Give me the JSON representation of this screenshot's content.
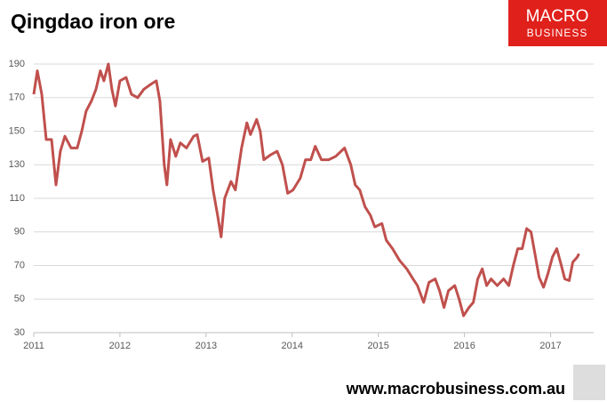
{
  "chart_data": {
    "type": "line",
    "title": "Qingdao iron ore",
    "brand": [
      "MACRO",
      "BUSINESS"
    ],
    "footer": "www.macrobusiness.com.au",
    "xlim": [
      2011,
      2017.5
    ],
    "xticks": [
      2011,
      2012,
      2013,
      2014,
      2015,
      2016,
      2017
    ],
    "ylim": [
      30,
      190
    ],
    "yticks": [
      30,
      50,
      70,
      90,
      110,
      130,
      150,
      170,
      190
    ],
    "grid": true,
    "series": [
      {
        "color": "#c0504d",
        "x": [
          2011.0,
          2011.041,
          2011.093,
          2011.144,
          2011.206,
          2011.258,
          2011.309,
          2011.361,
          2011.433,
          2011.505,
          2011.557,
          2011.608,
          2011.67,
          2011.722,
          2011.773,
          2011.814,
          2011.866,
          2011.907,
          2011.948,
          2012.0,
          2012.072,
          2012.134,
          2012.206,
          2012.278,
          2012.361,
          2012.423,
          2012.464,
          2012.515,
          2012.546,
          2012.588,
          2012.649,
          2012.701,
          2012.773,
          2012.856,
          2012.897,
          2012.959,
          2013.031,
          2013.082,
          2013.134,
          2013.175,
          2013.216,
          2013.289,
          2013.34,
          2013.412,
          2013.474,
          2013.515,
          2013.588,
          2013.629,
          2013.67,
          2013.753,
          2013.825,
          2013.887,
          2013.948,
          2014.01,
          2014.093,
          2014.155,
          2014.216,
          2014.268,
          2014.34,
          2014.423,
          2014.505,
          2014.608,
          2014.68,
          2014.732,
          2014.784,
          2014.845,
          2014.907,
          2014.959,
          2015.041,
          2015.093,
          2015.165,
          2015.247,
          2015.33,
          2015.402,
          2015.454,
          2015.526,
          2015.588,
          2015.66,
          2015.711,
          2015.763,
          2015.814,
          2015.887,
          2015.938,
          2015.99,
          2016.052,
          2016.103,
          2016.155,
          2016.206,
          2016.258,
          2016.309,
          2016.381,
          2016.454,
          2016.515,
          2016.567,
          2016.619,
          2016.67,
          2016.722,
          2016.773,
          2016.825,
          2016.866,
          2016.918,
          2016.969,
          2017.021,
          2017.072,
          2017.124,
          2017.165,
          2017.216,
          2017.258,
          2017.309,
          2017.33
        ],
        "values": [
          172,
          186,
          172,
          145,
          145,
          118,
          138,
          147,
          140,
          140,
          150,
          162,
          168,
          175,
          186,
          180,
          190,
          175,
          165,
          180,
          182,
          172,
          170,
          175,
          178,
          180,
          168,
          130,
          118,
          145,
          135,
          143,
          140,
          147,
          148,
          132,
          134,
          115,
          100,
          87,
          110,
          120,
          115,
          140,
          155,
          148,
          157,
          150,
          133,
          136,
          138,
          130,
          113,
          115,
          122,
          133,
          133,
          141,
          133,
          133,
          135,
          140,
          130,
          118,
          115,
          105,
          100,
          93,
          95,
          85,
          80,
          73,
          68,
          62,
          58,
          48,
          60,
          62,
          55,
          45,
          55,
          58,
          50,
          40,
          45,
          48,
          62,
          68,
          58,
          62,
          58,
          62,
          58,
          70,
          80,
          80,
          92,
          90,
          75,
          63,
          57,
          65,
          75,
          80,
          70,
          62,
          61,
          72,
          75,
          77
        ]
      }
    ]
  }
}
